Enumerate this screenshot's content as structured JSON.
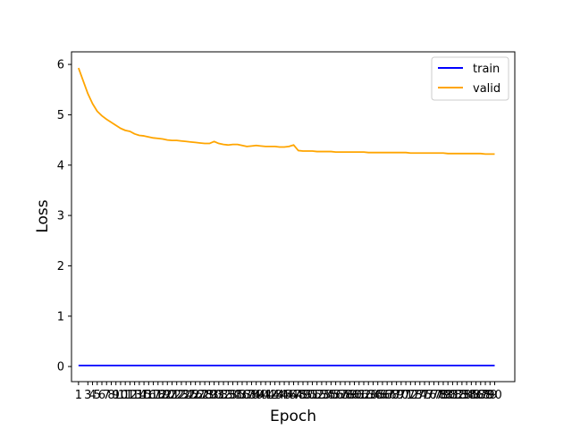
{
  "chart_data": {
    "type": "line",
    "title": "",
    "xlabel": "Epoch",
    "ylabel": "Loss",
    "xlim": [
      -0.5,
      94.3
    ],
    "ylim": [
      -0.3,
      6.25
    ],
    "y_ticks": [
      0,
      1,
      2,
      3,
      4,
      5,
      6
    ],
    "x_ticks": [
      1,
      3,
      4,
      5,
      6,
      7,
      8,
      9,
      10,
      11,
      12,
      13,
      14,
      15,
      16,
      17,
      18,
      19,
      20,
      21,
      22,
      23,
      24,
      25,
      26,
      27,
      28,
      29,
      30,
      31,
      32,
      33,
      34,
      35,
      36,
      37,
      38,
      39,
      40,
      41,
      42,
      43,
      44,
      45,
      46,
      47,
      48,
      49,
      50,
      51,
      52,
      53,
      54,
      55,
      56,
      57,
      58,
      59,
      60,
      61,
      62,
      63,
      64,
      65,
      66,
      67,
      68,
      69,
      70,
      71,
      72,
      73,
      74,
      75,
      76,
      77,
      78,
      79,
      80,
      81,
      82,
      83,
      84,
      85,
      86,
      87,
      88,
      89,
      90
    ],
    "grid": false,
    "legend_position": "top-right",
    "series": [
      {
        "name": "train",
        "color": "#0000ff",
        "x": [
          1,
          3,
          4,
          5,
          6,
          7,
          8,
          9,
          10,
          11,
          12,
          13,
          14,
          15,
          16,
          17,
          18,
          19,
          20,
          21,
          22,
          23,
          24,
          25,
          26,
          27,
          28,
          29,
          30,
          31,
          32,
          33,
          34,
          35,
          36,
          37,
          38,
          39,
          40,
          41,
          42,
          43,
          44,
          45,
          46,
          47,
          48,
          49,
          50,
          51,
          52,
          53,
          54,
          55,
          56,
          57,
          58,
          59,
          60,
          61,
          62,
          63,
          64,
          65,
          66,
          67,
          68,
          69,
          70,
          71,
          72,
          73,
          74,
          75,
          76,
          77,
          78,
          79,
          80,
          81,
          82,
          83,
          84,
          85,
          86,
          87,
          88,
          89,
          90
        ],
        "values": [
          0.02,
          0.02,
          0.02,
          0.02,
          0.02,
          0.02,
          0.02,
          0.02,
          0.02,
          0.02,
          0.02,
          0.02,
          0.02,
          0.02,
          0.02,
          0.02,
          0.02,
          0.02,
          0.02,
          0.02,
          0.02,
          0.02,
          0.02,
          0.02,
          0.02,
          0.02,
          0.02,
          0.02,
          0.02,
          0.02,
          0.02,
          0.02,
          0.02,
          0.02,
          0.02,
          0.02,
          0.02,
          0.02,
          0.02,
          0.02,
          0.02,
          0.02,
          0.02,
          0.02,
          0.02,
          0.02,
          0.02,
          0.02,
          0.02,
          0.02,
          0.02,
          0.02,
          0.02,
          0.02,
          0.02,
          0.02,
          0.02,
          0.02,
          0.02,
          0.02,
          0.02,
          0.02,
          0.02,
          0.02,
          0.02,
          0.02,
          0.02,
          0.02,
          0.02,
          0.02,
          0.02,
          0.02,
          0.02,
          0.02,
          0.02,
          0.02,
          0.02,
          0.02,
          0.02,
          0.02,
          0.02,
          0.02,
          0.02,
          0.02,
          0.02,
          0.02,
          0.02,
          0.02,
          0.02
        ]
      },
      {
        "name": "valid",
        "color": "#ffa500",
        "x": [
          1,
          3,
          4,
          5,
          6,
          7,
          8,
          9,
          10,
          11,
          12,
          13,
          14,
          15,
          16,
          17,
          18,
          19,
          20,
          21,
          22,
          23,
          24,
          25,
          26,
          27,
          28,
          29,
          30,
          31,
          32,
          33,
          34,
          35,
          36,
          37,
          38,
          39,
          40,
          41,
          42,
          43,
          44,
          45,
          46,
          47,
          48,
          49,
          50,
          51,
          52,
          53,
          54,
          55,
          56,
          57,
          58,
          59,
          60,
          61,
          62,
          63,
          64,
          65,
          66,
          67,
          68,
          69,
          70,
          71,
          72,
          73,
          74,
          75,
          76,
          77,
          78,
          79,
          80,
          81,
          82,
          83,
          84,
          85,
          86,
          87,
          88,
          89,
          90
        ],
        "values": [
          5.93,
          5.42,
          5.22,
          5.07,
          4.98,
          4.91,
          4.85,
          4.79,
          4.73,
          4.69,
          4.67,
          4.62,
          4.59,
          4.58,
          4.56,
          4.54,
          4.53,
          4.52,
          4.5,
          4.49,
          4.49,
          4.48,
          4.47,
          4.46,
          4.45,
          4.44,
          4.43,
          4.43,
          4.47,
          4.43,
          4.41,
          4.4,
          4.41,
          4.41,
          4.39,
          4.37,
          4.38,
          4.39,
          4.38,
          4.37,
          4.37,
          4.37,
          4.36,
          4.36,
          4.37,
          4.4,
          4.29,
          4.28,
          4.28,
          4.28,
          4.27,
          4.27,
          4.27,
          4.27,
          4.26,
          4.26,
          4.26,
          4.26,
          4.26,
          4.26,
          4.26,
          4.25,
          4.25,
          4.25,
          4.25,
          4.25,
          4.25,
          4.25,
          4.25,
          4.25,
          4.24,
          4.24,
          4.24,
          4.24,
          4.24,
          4.24,
          4.24,
          4.24,
          4.23,
          4.23,
          4.23,
          4.23,
          4.23,
          4.23,
          4.23,
          4.23,
          4.22,
          4.22,
          4.22
        ]
      }
    ]
  }
}
